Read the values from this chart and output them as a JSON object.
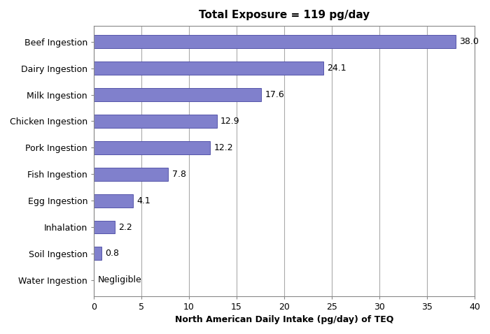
{
  "title": "Total Exposure = 119 pg/day",
  "xlabel": "North American Daily Intake (pg/day) of TEQ",
  "categories": [
    "Water Ingestion",
    "Soil Ingestion",
    "Inhalation",
    "Egg Ingestion",
    "Fish Ingestion",
    "Pork Ingestion",
    "Chicken Ingestion",
    "Milk Ingestion",
    "Dairy Ingestion",
    "Beef Ingestion"
  ],
  "values": [
    0,
    0.8,
    2.2,
    4.1,
    7.8,
    12.2,
    12.9,
    17.6,
    24.1,
    38.0
  ],
  "labels": [
    "Negligible",
    "0.8",
    "2.2",
    "4.1",
    "7.8",
    "12.2",
    "12.9",
    "17.6",
    "24.1",
    "38.0"
  ],
  "bar_color": "#8080cc",
  "bar_edge_color": "#5555aa",
  "background_color": "#ffffff",
  "plot_bg_color": "#ffffff",
  "grid_color": "#aaaaaa",
  "xlim": [
    0,
    40
  ],
  "xticks": [
    0,
    5,
    10,
    15,
    20,
    25,
    30,
    35,
    40
  ],
  "title_fontsize": 11,
  "label_fontsize": 9,
  "tick_fontsize": 9,
  "bar_height": 0.5,
  "figsize": [
    7.0,
    4.78
  ],
  "dpi": 100
}
